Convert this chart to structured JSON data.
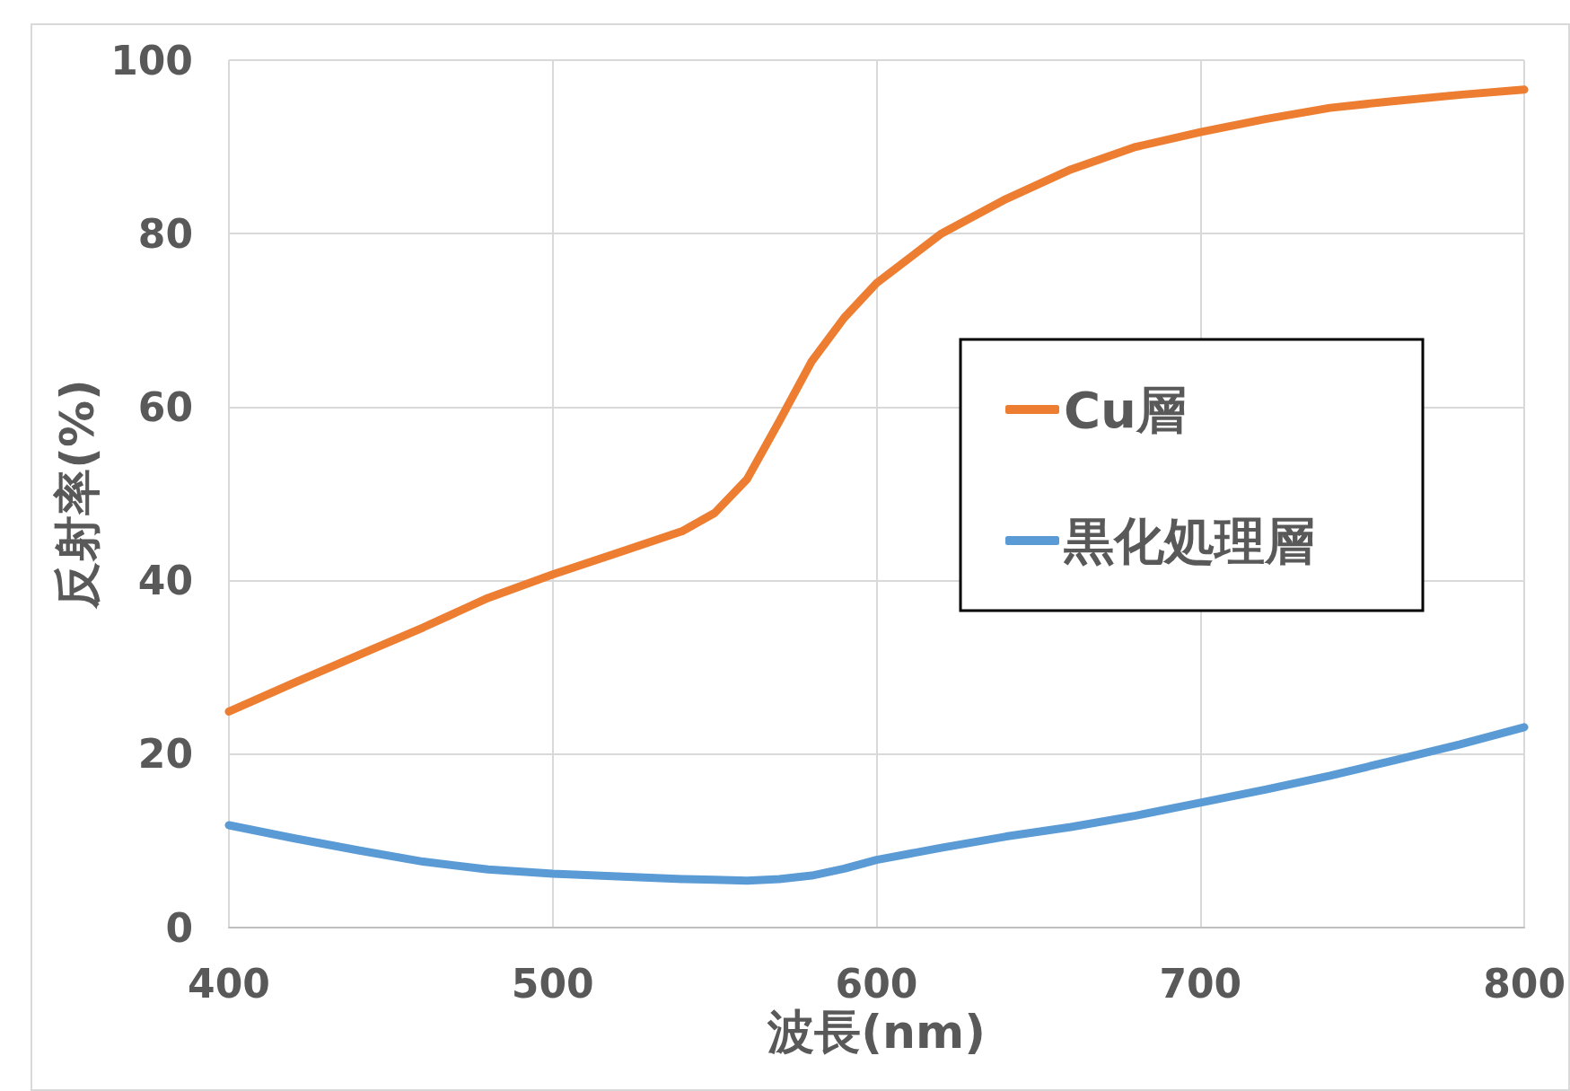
{
  "chart_data": {
    "type": "line",
    "xlabel": "波長(nm)",
    "ylabel": "反射率(%)",
    "x": [
      400,
      420,
      440,
      460,
      480,
      500,
      520,
      540,
      550,
      560,
      570,
      580,
      590,
      600,
      620,
      640,
      660,
      680,
      700,
      720,
      740,
      760,
      780,
      800
    ],
    "series": [
      {
        "name": "Cu層",
        "color": "#ed7d31",
        "values": [
          24.9,
          28.2,
          31.4,
          34.6,
          38.0,
          40.7,
          43.2,
          45.7,
          47.8,
          51.7,
          58.4,
          65.3,
          70.3,
          74.3,
          80.0,
          84.0,
          87.4,
          90.0,
          91.7,
          93.2,
          94.5,
          95.3,
          96.0,
          96.6
        ]
      },
      {
        "name": "黒化処理層",
        "color": "#5b9bd5",
        "values": [
          11.8,
          10.3,
          8.9,
          7.6,
          6.7,
          6.2,
          5.9,
          5.6,
          5.5,
          5.4,
          5.6,
          6.0,
          6.8,
          7.8,
          9.2,
          10.5,
          11.6,
          12.9,
          14.4,
          15.9,
          17.5,
          19.3,
          21.1,
          23.1
        ]
      }
    ],
    "xlim": [
      400,
      800
    ],
    "xticks": [
      400,
      500,
      600,
      700,
      800
    ],
    "ylim": [
      0,
      100
    ],
    "yticks": [
      0,
      20,
      40,
      60,
      80,
      100
    ],
    "grid": true,
    "legend": "right",
    "marker": "none",
    "line_style": "solid"
  }
}
